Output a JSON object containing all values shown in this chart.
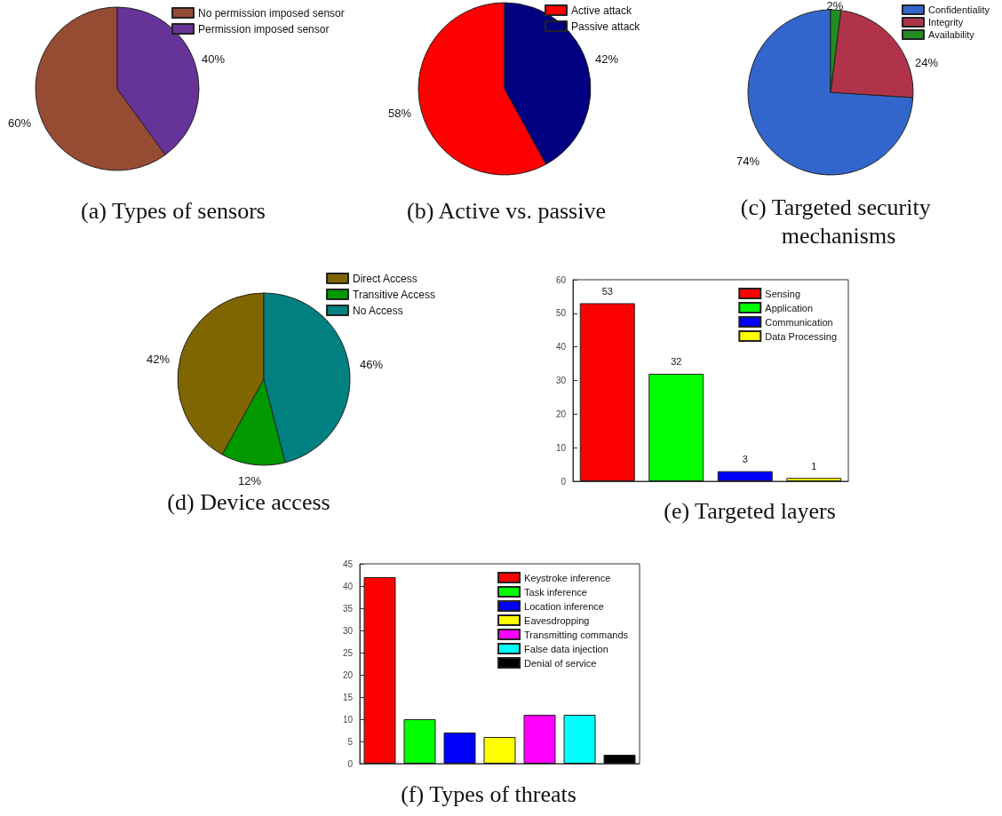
{
  "chart_data": [
    {
      "type": "pie",
      "title": "(a) Types of sensors",
      "categories": [
        "No permission imposed sensor",
        "Permission imposed sensor"
      ],
      "values": [
        60,
        40
      ],
      "colors": [
        "#964b33",
        "#663399"
      ],
      "value_labels": [
        "60%",
        "40%"
      ],
      "legend": "top right"
    },
    {
      "type": "pie",
      "title": "(b) Active vs. passive",
      "categories": [
        "Active attack",
        "Passive attack"
      ],
      "values": [
        58,
        42
      ],
      "colors": [
        "#ff0000",
        "#000080"
      ],
      "value_labels": [
        "58%",
        "42%"
      ],
      "legend": "top right"
    },
    {
      "type": "pie",
      "title": "(c) Targeted security mechanisms",
      "categories": [
        "Confidentiality",
        "Integrity",
        "Availability"
      ],
      "values": [
        74,
        24,
        2
      ],
      "colors": [
        "#3366cc",
        "#b0334a",
        "#228b22"
      ],
      "value_labels": [
        "74%",
        "24%",
        "2%"
      ],
      "legend": "top right"
    },
    {
      "type": "pie",
      "title": "(d) Device access",
      "categories": [
        "Direct Access",
        "Transitive Access",
        "No Access"
      ],
      "values": [
        42,
        12,
        46
      ],
      "colors": [
        "#806600",
        "#009900",
        "#008080"
      ],
      "value_labels": [
        "42%",
        "12%",
        "46%"
      ],
      "legend": "top"
    },
    {
      "type": "bar",
      "title": "(e) Targeted layers",
      "categories": [
        null,
        null,
        null,
        null
      ],
      "ylim": [
        0,
        60
      ],
      "yticks": [
        0,
        10,
        20,
        30,
        40,
        50,
        60
      ],
      "data_labels": true,
      "legend": "top right",
      "tick_labels": "y",
      "series": [
        {
          "name": "Sensing",
          "color": "#ff0000",
          "values": [
            53,
            null,
            null,
            null
          ]
        },
        {
          "name": "Application",
          "color": "#00ff00",
          "values": [
            null,
            32,
            null,
            null
          ]
        },
        {
          "name": "Communication",
          "color": "#0000ff",
          "values": [
            null,
            null,
            3,
            null
          ]
        },
        {
          "name": "Data Processing",
          "color": "#ffff00",
          "values": [
            null,
            null,
            null,
            1
          ]
        }
      ]
    },
    {
      "type": "bar",
      "title": "(f) Types of threats",
      "categories": [
        null,
        null,
        null,
        null,
        null,
        null,
        null
      ],
      "ylim": [
        0,
        45
      ],
      "yticks": [
        0,
        5,
        10,
        15,
        20,
        25,
        30,
        35,
        40,
        45
      ],
      "legend": "top right",
      "tick_labels": "y",
      "series": [
        {
          "name": "Keystroke inference",
          "color": "#ff0000",
          "values": [
            42,
            null,
            null,
            null,
            null,
            null,
            null
          ]
        },
        {
          "name": "Task inference",
          "color": "#00ff00",
          "values": [
            null,
            10,
            null,
            null,
            null,
            null,
            null
          ]
        },
        {
          "name": "Location inference",
          "color": "#0000ff",
          "values": [
            null,
            null,
            7,
            null,
            null,
            null,
            null
          ]
        },
        {
          "name": "Eavesdropping",
          "color": "#ffff00",
          "values": [
            null,
            null,
            null,
            6,
            null,
            null,
            null
          ]
        },
        {
          "name": "Transmitting commands",
          "color": "#ff00ff",
          "values": [
            null,
            null,
            null,
            null,
            11,
            null,
            null
          ]
        },
        {
          "name": "False data injection",
          "color": "#00ffff",
          "values": [
            null,
            null,
            null,
            null,
            null,
            11,
            null
          ]
        },
        {
          "name": "Denial of service",
          "color": "#000000",
          "values": [
            null,
            null,
            null,
            null,
            null,
            null,
            2
          ]
        }
      ]
    }
  ]
}
